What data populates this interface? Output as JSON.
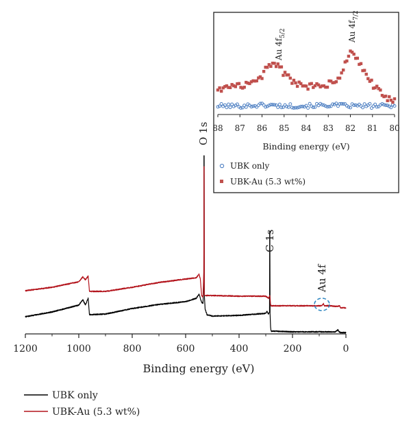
{
  "chart_data": [
    {
      "type": "line",
      "xlabel": "Binding energy (eV)",
      "ylabel": "",
      "xlim": [
        1200,
        0
      ],
      "x_reversed": true,
      "xticks": [
        "1200",
        "1000",
        "800",
        "600",
        "400",
        "200",
        "0"
      ],
      "grid": false,
      "legend_position": "bottom-left",
      "series": [
        {
          "name": "UBK only",
          "color": "#000000",
          "x": [
            1200,
            1100,
            1000,
            985,
            975,
            965,
            960,
            900,
            800,
            700,
            600,
            560,
            550,
            545,
            540,
            535,
            532,
            531,
            530,
            527,
            520,
            500,
            400,
            300,
            295,
            290,
            286,
            285,
            284,
            282,
            280,
            270,
            200,
            100,
            40,
            30,
            25,
            20,
            10,
            0
          ],
          "y": [
            25,
            32,
            42,
            50,
            42,
            52,
            28,
            29,
            37,
            43,
            47,
            52,
            58,
            52,
            46,
            44,
            82,
            260,
            56,
            36,
            28,
            26,
            27,
            30,
            33,
            29,
            32,
            150,
            30,
            10,
            4,
            4,
            3,
            3,
            3,
            6,
            3,
            2,
            2,
            2
          ]
        },
        {
          "name": "UBK-Au (5.3 wt%)",
          "color": "#b3141c",
          "x": [
            1200,
            1100,
            1000,
            985,
            975,
            965,
            960,
            900,
            800,
            700,
            600,
            560,
            550,
            545,
            540,
            535,
            532,
            531,
            530,
            527,
            520,
            500,
            400,
            300,
            290,
            285,
            284,
            282,
            280,
            270,
            200,
            120,
            90,
            84,
            80,
            60,
            30,
            24,
            20,
            0
          ],
          "y": [
            63,
            68,
            76,
            83,
            79,
            84,
            62,
            62,
            68,
            75,
            80,
            82,
            87,
            80,
            56,
            54,
            90,
            244,
            57,
            56,
            56,
            56,
            55,
            55,
            52,
            56,
            53,
            42,
            41,
            41,
            41,
            41,
            41,
            44,
            41,
            41,
            40,
            41,
            38,
            38
          ]
        }
      ],
      "annotations": [
        "O 1s",
        "C 1s",
        "Au 4f"
      ]
    },
    {
      "type": "scatter",
      "xlabel": "Binding energy (eV)",
      "ylabel": "",
      "xlim": [
        88,
        80
      ],
      "x_reversed": true,
      "xticks": [
        "88",
        "87",
        "86",
        "85",
        "84",
        "83",
        "82",
        "81",
        "80"
      ],
      "grid": false,
      "legend_position": "bottom-left",
      "series": [
        {
          "name": "UBK only",
          "color": "#4d7fc2",
          "marker": "circle",
          "x": [
            88,
            87,
            86,
            85,
            84,
            83,
            82,
            81,
            80
          ],
          "y": [
            10,
            10,
            11,
            10,
            10,
            11,
            10,
            10,
            10
          ]
        },
        {
          "name": "UBK-Au (5.3 wt%)",
          "color": "#c0504d",
          "marker": "square",
          "x": [
            88,
            87.5,
            87,
            86.5,
            86,
            85.8,
            85.5,
            85.2,
            85,
            84.5,
            84,
            83.5,
            83,
            82.5,
            82.2,
            82,
            81.8,
            81.5,
            81,
            80.5,
            80
          ],
          "y": [
            30,
            32,
            33,
            36,
            45,
            55,
            60,
            56,
            47,
            37,
            33,
            33,
            35,
            44,
            60,
            75,
            70,
            55,
            35,
            22,
            15
          ]
        }
      ],
      "annotations": [
        "Au 4f5/2",
        "Au 4f7/2"
      ]
    }
  ],
  "labels": {
    "o1s": "O 1s",
    "c1s": "C 1s",
    "au4f": "Au 4f",
    "au52_main": "Au 4f",
    "au52_sub": "5/2",
    "au72_main": "Au 4f",
    "au72_sub": "7/2"
  },
  "legend": {
    "ubk": "UBK only",
    "ubkau": "UBK-Au (5.3 wt%)"
  },
  "colors": {
    "ubk_line": "#000000",
    "ubkau_line": "#b3141c",
    "inset_ubk": "#4d7fc2",
    "inset_ubkau": "#c0504d",
    "highlight_circle": "#2e86c1"
  }
}
